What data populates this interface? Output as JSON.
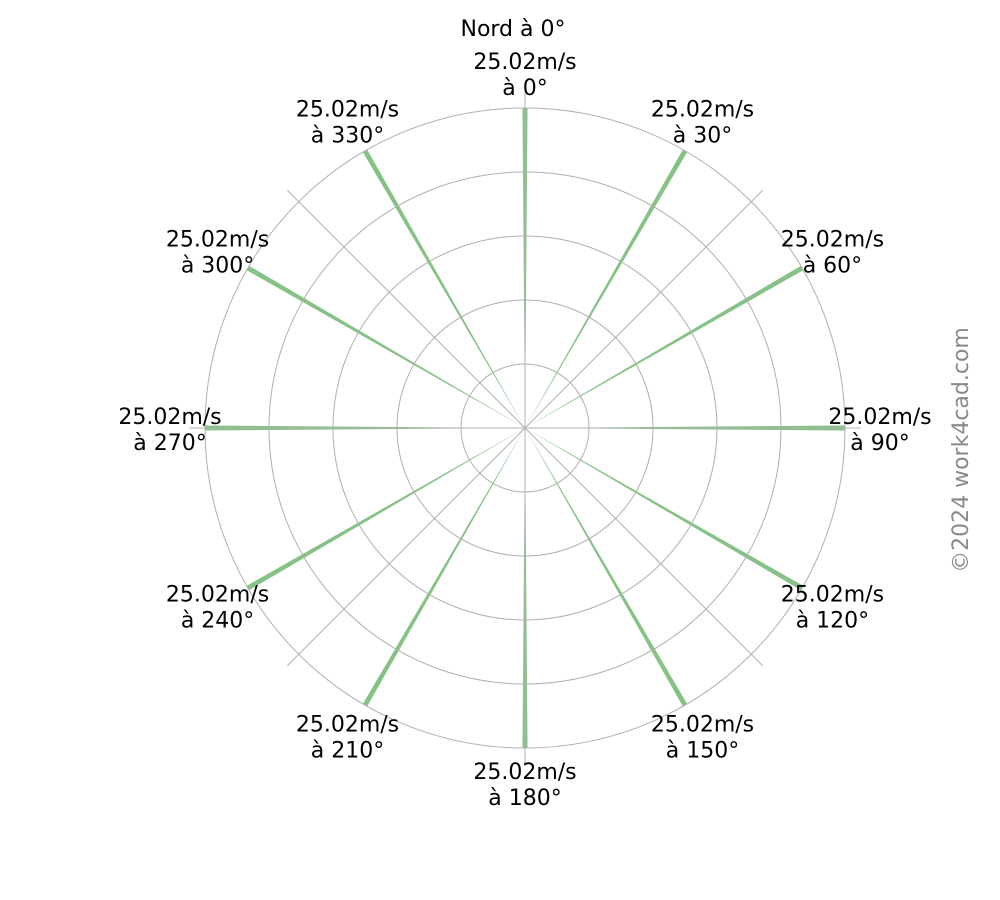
{
  "chart_data": {
    "type": "polar-bar",
    "title": "Nord à 0°",
    "direction": "clockwise",
    "zero_location": "north",
    "angles_deg": [
      0,
      30,
      60,
      90,
      120,
      150,
      180,
      210,
      240,
      270,
      300,
      330
    ],
    "values": [
      25.02,
      25.02,
      25.02,
      25.02,
      25.02,
      25.02,
      25.02,
      25.02,
      25.02,
      25.02,
      25.02,
      25.02
    ],
    "unit": "m/s",
    "labels": [
      [
        "25.02m/s",
        "à 0°"
      ],
      [
        "25.02m/s",
        "à 30°"
      ],
      [
        "25.02m/s",
        "à 60°"
      ],
      [
        "25.02m/s",
        "à 90°"
      ],
      [
        "25.02m/s",
        "à 120°"
      ],
      [
        "25.02m/s",
        "à 150°"
      ],
      [
        "25.02m/s",
        "à 180°"
      ],
      [
        "25.02m/s",
        "à 210°"
      ],
      [
        "25.02m/s",
        "à 240°"
      ],
      [
        "25.02m/s",
        "à 270°"
      ],
      [
        "25.02m/s",
        "à 300°"
      ],
      [
        "25.02m/s",
        "à 330°"
      ]
    ],
    "rmax": 25.02,
    "radial_grid_count": 5,
    "angular_grid_step_deg": 45,
    "grid": true,
    "bar_color": "#7fbf7f",
    "grid_color": "#b0b0b0"
  },
  "watermark": "©2024 work4cad.com",
  "watermark_color": "#8a8a8a"
}
